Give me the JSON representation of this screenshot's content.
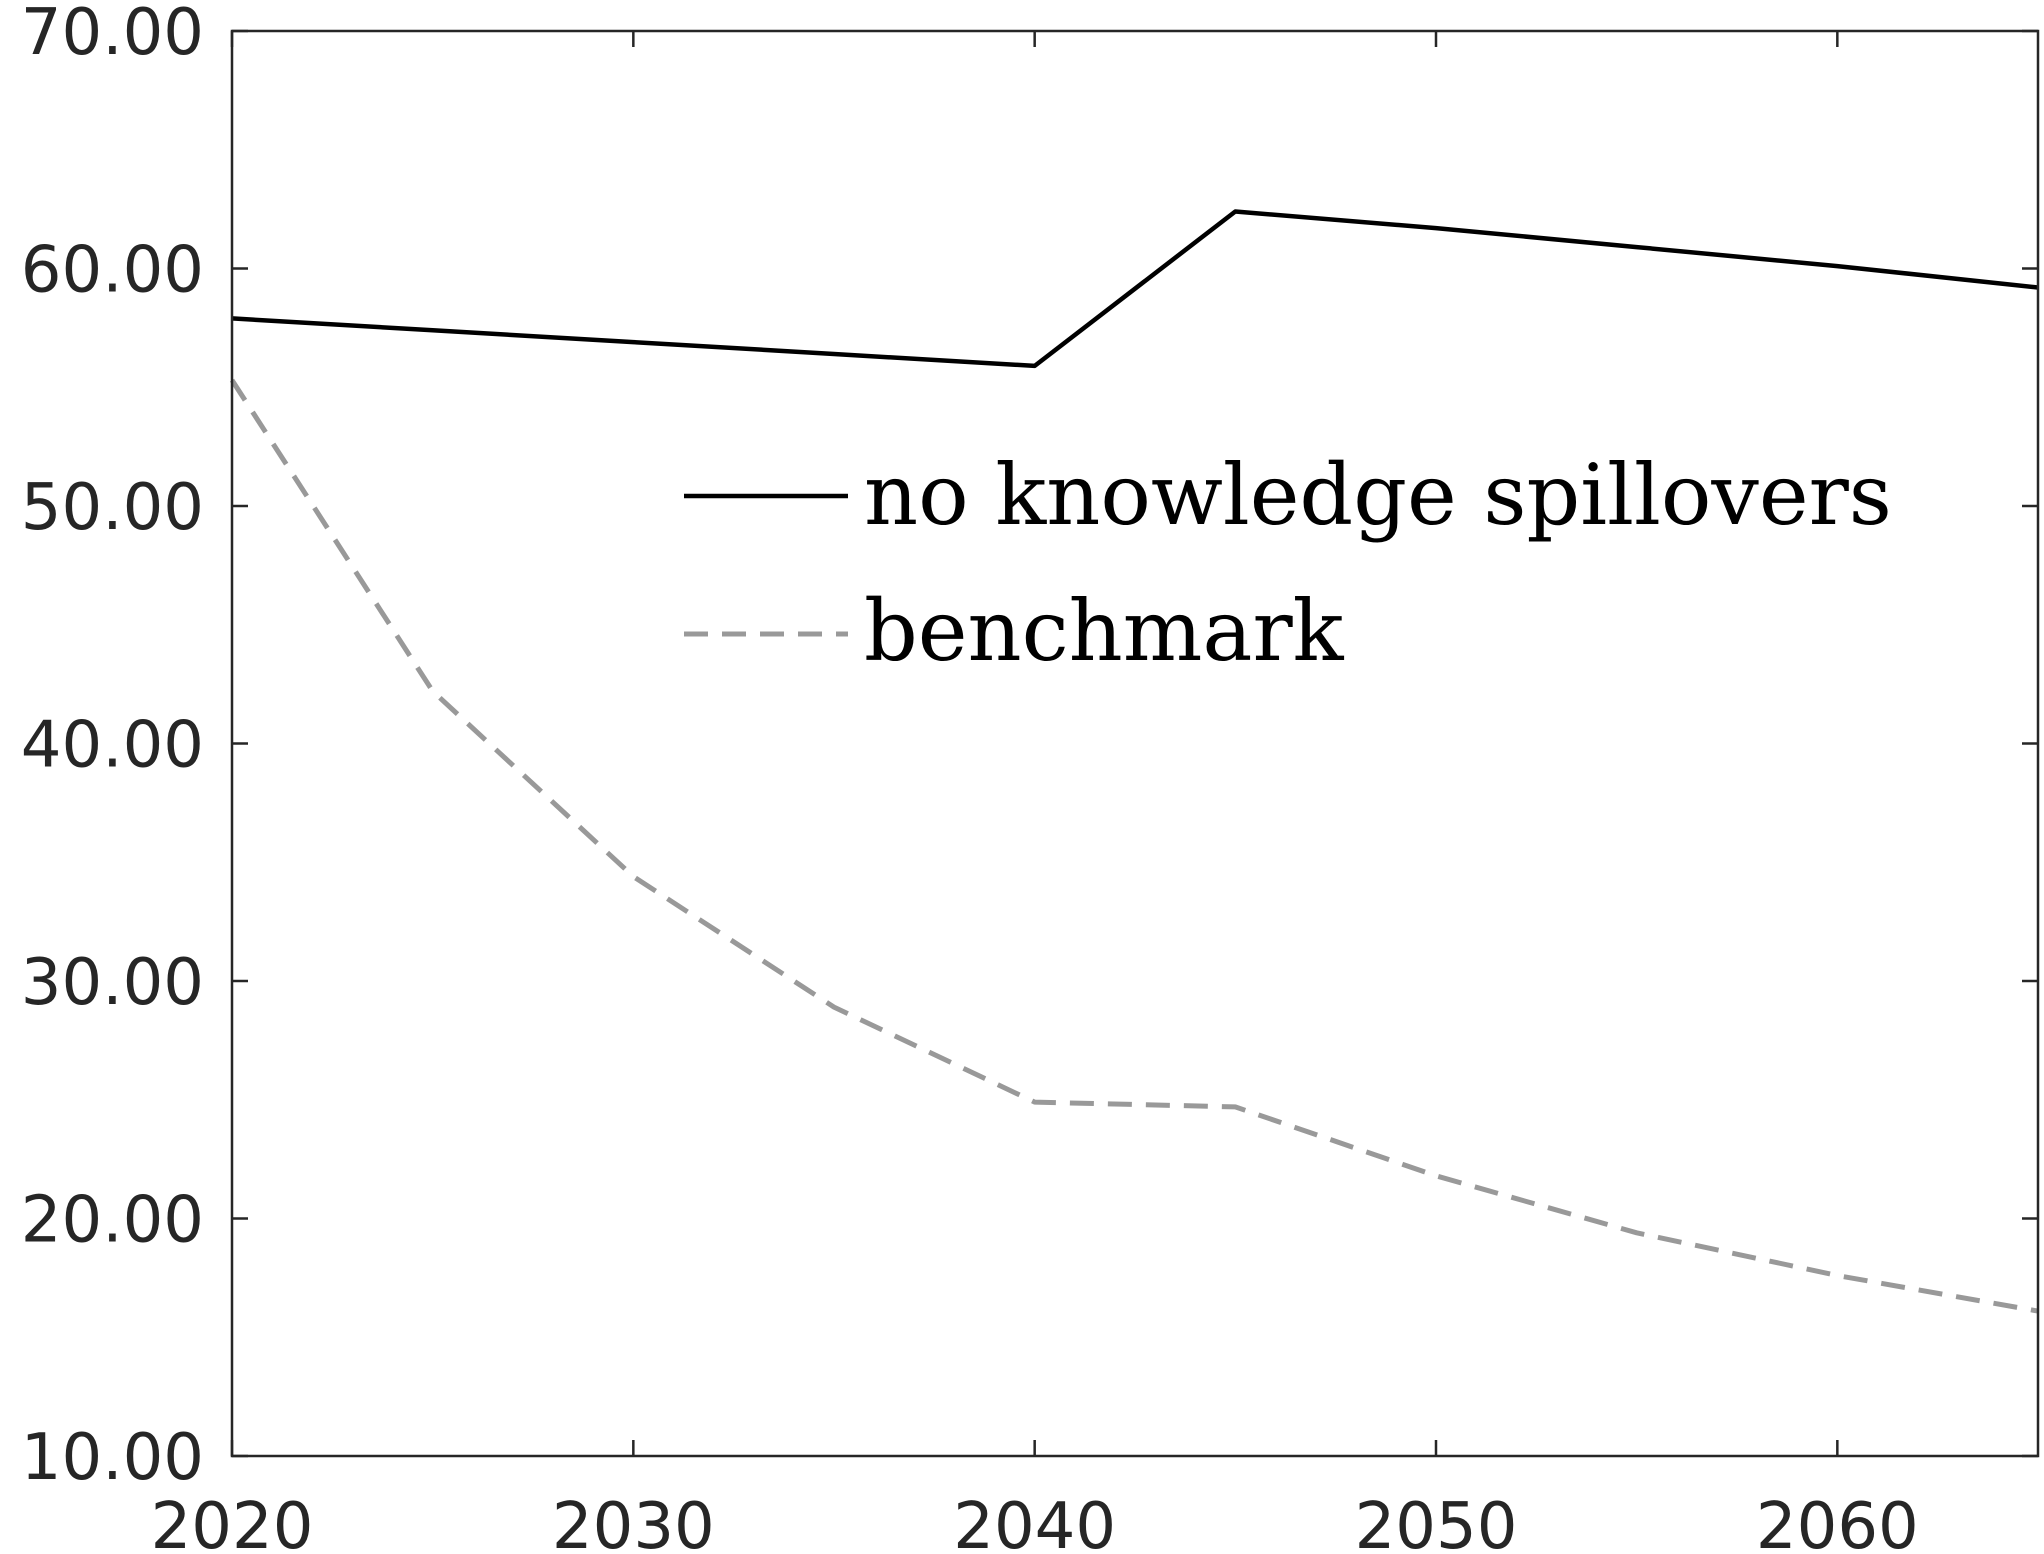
{
  "colors": {
    "axis": "#262626",
    "background": "#ffffff",
    "series_no_spillovers": "#000000",
    "series_benchmark": "#999999"
  },
  "chart_data": {
    "type": "line",
    "title": "",
    "xlabel": "",
    "ylabel": "",
    "xlim": [
      2020,
      2065
    ],
    "ylim": [
      10,
      70
    ],
    "xticks": [
      2020,
      2030,
      2040,
      2050,
      2060
    ],
    "xtick_labels": [
      "2020",
      "2030",
      "2040",
      "2050",
      "2060"
    ],
    "yticks": [
      10,
      20,
      30,
      40,
      50,
      60,
      70
    ],
    "ytick_labels": [
      "10.00",
      "20.00",
      "30.00",
      "40.00",
      "50.00",
      "60.00",
      "70.00"
    ],
    "grid": false,
    "legend_position": "upper-middle-right",
    "series": [
      {
        "name": "no knowledge spillovers",
        "style": "solid",
        "color": "#000000",
        "x": [
          2020,
          2025,
          2030,
          2035,
          2040,
          2045,
          2050,
          2055,
          2060,
          2065
        ],
        "values": [
          57.9,
          57.4,
          56.9,
          56.4,
          55.9,
          62.4,
          61.7,
          60.9,
          60.1,
          59.2
        ]
      },
      {
        "name": "benchmark",
        "style": "dashed",
        "color": "#999999",
        "x": [
          2020,
          2025,
          2030,
          2035,
          2040,
          2045,
          2050,
          2055,
          2060,
          2065
        ],
        "values": [
          55.3,
          42.2,
          34.4,
          28.9,
          24.9,
          24.7,
          21.8,
          19.4,
          17.6,
          16.1
        ]
      }
    ]
  }
}
